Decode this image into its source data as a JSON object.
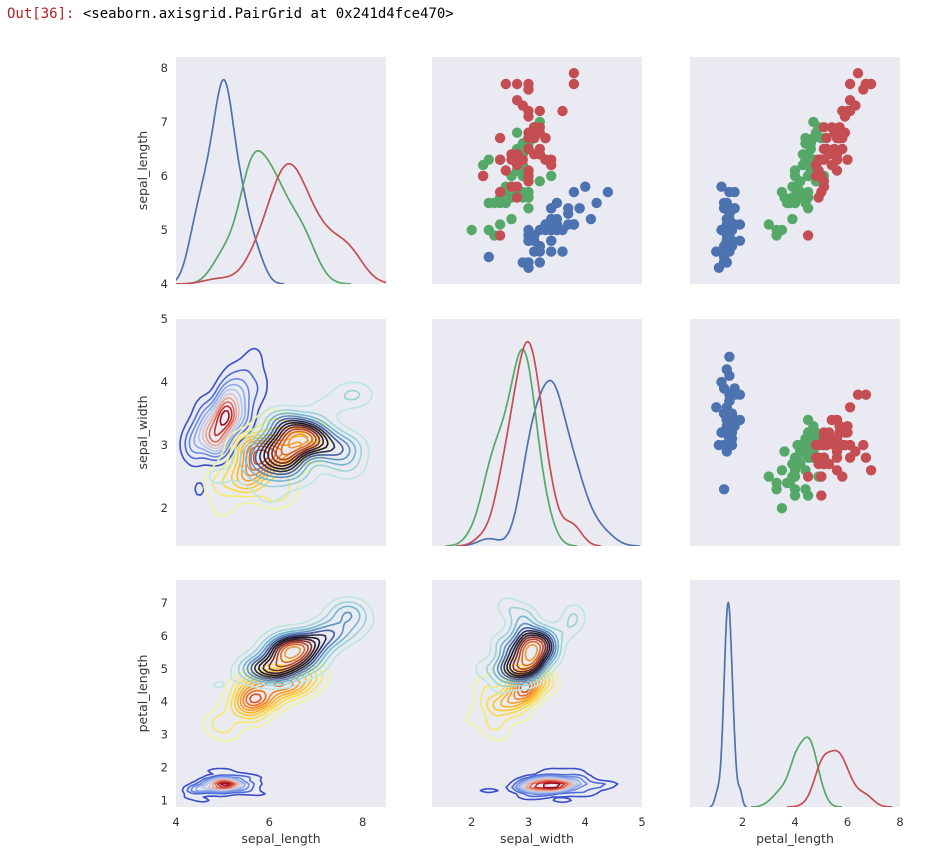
{
  "output": {
    "prompt": "Out[36]:",
    "repr": "<seaborn.axisgrid.PairGrid at 0x241d4fce470>"
  },
  "colors": {
    "panel_bg": "#eaeaf2",
    "setosa": "#4c72b0",
    "versicolor": "#55a868",
    "virginica": "#c44e52"
  },
  "chart_data": {
    "type": "pairgrid",
    "variables": [
      "sepal_length",
      "sepal_width",
      "petal_length"
    ],
    "axes": {
      "sepal_length": {
        "label": "sepal_length",
        "range": [
          4.0,
          8.5
        ],
        "ticks": [
          "4",
          "6",
          "8"
        ],
        "y_range": [
          4.0,
          8.2
        ],
        "y_ticks": [
          "4",
          "5",
          "6",
          "7",
          "8"
        ]
      },
      "sepal_width": {
        "label": "sepal_width",
        "range": [
          1.3,
          5.0
        ],
        "ticks": [
          "2",
          "3",
          "4",
          "5"
        ],
        "y_range": [
          1.4,
          5.0
        ],
        "y_ticks": [
          "2",
          "3",
          "4",
          "5"
        ]
      },
      "petal_length": {
        "label": "petal_length",
        "range": [
          0.0,
          8.0
        ],
        "ticks": [
          "2",
          "4",
          "6",
          "8"
        ],
        "y_range": [
          0.8,
          7.7
        ],
        "y_ticks": [
          "1",
          "2",
          "3",
          "4",
          "5",
          "6",
          "7"
        ]
      }
    },
    "panels": {
      "upper": "scatter",
      "diagonal": "kde",
      "lower": "kde_contour"
    },
    "grid": false,
    "series": [
      {
        "name": "setosa",
        "points": [
          [
            5.1,
            3.5,
            1.4
          ],
          [
            4.9,
            3.0,
            1.4
          ],
          [
            4.7,
            3.2,
            1.3
          ],
          [
            4.6,
            3.1,
            1.5
          ],
          [
            5.0,
            3.6,
            1.4
          ],
          [
            5.4,
            3.9,
            1.7
          ],
          [
            4.6,
            3.4,
            1.4
          ],
          [
            5.0,
            3.4,
            1.5
          ],
          [
            4.4,
            2.9,
            1.4
          ],
          [
            4.9,
            3.1,
            1.5
          ],
          [
            5.4,
            3.7,
            1.5
          ],
          [
            4.8,
            3.4,
            1.6
          ],
          [
            4.8,
            3.0,
            1.4
          ],
          [
            4.3,
            3.0,
            1.1
          ],
          [
            5.8,
            4.0,
            1.2
          ],
          [
            5.7,
            4.4,
            1.5
          ],
          [
            5.4,
            3.9,
            1.3
          ],
          [
            5.1,
            3.5,
            1.4
          ],
          [
            5.7,
            3.8,
            1.7
          ],
          [
            5.1,
            3.8,
            1.5
          ],
          [
            5.4,
            3.4,
            1.7
          ],
          [
            5.1,
            3.7,
            1.5
          ],
          [
            4.6,
            3.6,
            1.0
          ],
          [
            5.1,
            3.3,
            1.7
          ],
          [
            4.8,
            3.4,
            1.9
          ],
          [
            5.0,
            3.0,
            1.6
          ],
          [
            5.0,
            3.4,
            1.6
          ],
          [
            5.2,
            3.5,
            1.5
          ],
          [
            5.2,
            3.4,
            1.4
          ],
          [
            4.7,
            3.2,
            1.6
          ],
          [
            4.8,
            3.1,
            1.6
          ],
          [
            5.4,
            3.4,
            1.5
          ],
          [
            5.2,
            4.1,
            1.5
          ],
          [
            5.5,
            4.2,
            1.4
          ],
          [
            4.9,
            3.1,
            1.5
          ],
          [
            5.0,
            3.2,
            1.2
          ],
          [
            5.5,
            3.5,
            1.3
          ],
          [
            4.4,
            3.0,
            1.3
          ],
          [
            5.1,
            3.4,
            1.5
          ],
          [
            5.0,
            3.5,
            1.3
          ],
          [
            4.5,
            2.3,
            1.3
          ],
          [
            4.4,
            3.2,
            1.3
          ],
          [
            5.0,
            3.5,
            1.6
          ],
          [
            5.1,
            3.8,
            1.9
          ],
          [
            4.8,
            3.0,
            1.4
          ],
          [
            5.1,
            3.8,
            1.6
          ],
          [
            4.6,
            3.2,
            1.4
          ],
          [
            5.3,
            3.7,
            1.5
          ],
          [
            5.0,
            3.3,
            1.4
          ]
        ]
      },
      {
        "name": "versicolor",
        "points": [
          [
            7.0,
            3.2,
            4.7
          ],
          [
            6.4,
            3.2,
            4.5
          ],
          [
            6.9,
            3.1,
            4.9
          ],
          [
            5.5,
            2.3,
            4.0
          ],
          [
            6.5,
            2.8,
            4.6
          ],
          [
            5.7,
            2.8,
            4.5
          ],
          [
            6.3,
            3.3,
            4.7
          ],
          [
            4.9,
            2.4,
            3.3
          ],
          [
            6.6,
            2.9,
            4.6
          ],
          [
            5.2,
            2.7,
            3.9
          ],
          [
            5.0,
            2.0,
            3.5
          ],
          [
            5.9,
            3.0,
            4.2
          ],
          [
            6.0,
            2.2,
            4.0
          ],
          [
            6.1,
            2.9,
            4.7
          ],
          [
            5.6,
            2.9,
            3.6
          ],
          [
            6.7,
            3.1,
            4.4
          ],
          [
            5.6,
            3.0,
            4.5
          ],
          [
            5.8,
            2.7,
            4.1
          ],
          [
            6.2,
            2.2,
            4.5
          ],
          [
            5.6,
            2.5,
            3.9
          ],
          [
            5.9,
            3.2,
            4.8
          ],
          [
            6.1,
            2.8,
            4.0
          ],
          [
            6.3,
            2.5,
            4.9
          ],
          [
            6.1,
            2.8,
            4.7
          ],
          [
            6.4,
            2.9,
            4.3
          ],
          [
            6.6,
            3.0,
            4.4
          ],
          [
            6.8,
            2.8,
            4.8
          ],
          [
            6.7,
            3.0,
            5.0
          ],
          [
            6.0,
            2.9,
            4.5
          ],
          [
            5.7,
            2.6,
            3.5
          ],
          [
            5.5,
            2.4,
            3.8
          ],
          [
            5.5,
            2.4,
            3.7
          ],
          [
            5.8,
            2.7,
            3.9
          ],
          [
            6.0,
            2.7,
            5.1
          ],
          [
            5.4,
            3.0,
            4.5
          ],
          [
            6.0,
            3.4,
            4.5
          ],
          [
            6.7,
            3.1,
            4.7
          ],
          [
            6.3,
            2.3,
            4.4
          ],
          [
            5.6,
            3.0,
            4.1
          ],
          [
            5.5,
            2.5,
            4.0
          ],
          [
            5.5,
            2.6,
            4.4
          ],
          [
            6.1,
            3.0,
            4.6
          ],
          [
            5.8,
            2.6,
            4.0
          ],
          [
            5.0,
            2.3,
            3.3
          ],
          [
            5.6,
            2.7,
            4.2
          ],
          [
            5.7,
            3.0,
            4.2
          ],
          [
            5.7,
            2.9,
            4.2
          ],
          [
            6.2,
            2.9,
            4.3
          ],
          [
            5.1,
            2.5,
            3.0
          ],
          [
            5.7,
            2.8,
            4.1
          ]
        ]
      },
      {
        "name": "virginica",
        "points": [
          [
            6.3,
            3.3,
            6.0
          ],
          [
            5.8,
            2.7,
            5.1
          ],
          [
            7.1,
            3.0,
            5.9
          ],
          [
            6.3,
            2.9,
            5.6
          ],
          [
            6.5,
            3.0,
            5.8
          ],
          [
            7.6,
            3.0,
            6.6
          ],
          [
            4.9,
            2.5,
            4.5
          ],
          [
            7.3,
            2.9,
            6.3
          ],
          [
            6.7,
            2.5,
            5.8
          ],
          [
            7.2,
            3.6,
            6.1
          ],
          [
            6.5,
            3.2,
            5.1
          ],
          [
            6.4,
            2.7,
            5.3
          ],
          [
            6.8,
            3.0,
            5.5
          ],
          [
            5.7,
            2.5,
            5.0
          ],
          [
            5.8,
            2.8,
            5.1
          ],
          [
            6.4,
            3.2,
            5.3
          ],
          [
            6.5,
            3.0,
            5.5
          ],
          [
            7.7,
            3.8,
            6.7
          ],
          [
            7.7,
            2.6,
            6.9
          ],
          [
            6.0,
            2.2,
            5.0
          ],
          [
            6.9,
            3.2,
            5.7
          ],
          [
            5.6,
            2.8,
            4.9
          ],
          [
            7.7,
            2.8,
            6.7
          ],
          [
            6.3,
            2.7,
            4.9
          ],
          [
            6.7,
            3.3,
            5.7
          ],
          [
            7.2,
            3.2,
            6.0
          ],
          [
            6.2,
            2.8,
            4.8
          ],
          [
            6.1,
            3.0,
            4.9
          ],
          [
            6.4,
            2.8,
            5.6
          ],
          [
            7.2,
            3.0,
            5.8
          ],
          [
            7.4,
            2.8,
            6.1
          ],
          [
            7.9,
            3.8,
            6.4
          ],
          [
            6.4,
            2.8,
            5.6
          ],
          [
            6.3,
            2.8,
            5.1
          ],
          [
            6.1,
            2.6,
            5.6
          ],
          [
            7.7,
            3.0,
            6.1
          ],
          [
            6.3,
            3.4,
            5.6
          ],
          [
            6.4,
            3.1,
            5.5
          ],
          [
            6.0,
            3.0,
            4.8
          ],
          [
            6.9,
            3.1,
            5.4
          ],
          [
            6.7,
            3.1,
            5.6
          ],
          [
            6.9,
            3.1,
            5.1
          ],
          [
            6.8,
            3.2,
            5.9
          ],
          [
            6.7,
            3.3,
            5.7
          ],
          [
            6.7,
            3.0,
            5.2
          ],
          [
            6.3,
            2.5,
            5.0
          ],
          [
            6.5,
            3.0,
            5.2
          ],
          [
            6.2,
            3.4,
            5.4
          ],
          [
            5.9,
            3.0,
            5.1
          ]
        ]
      }
    ]
  }
}
